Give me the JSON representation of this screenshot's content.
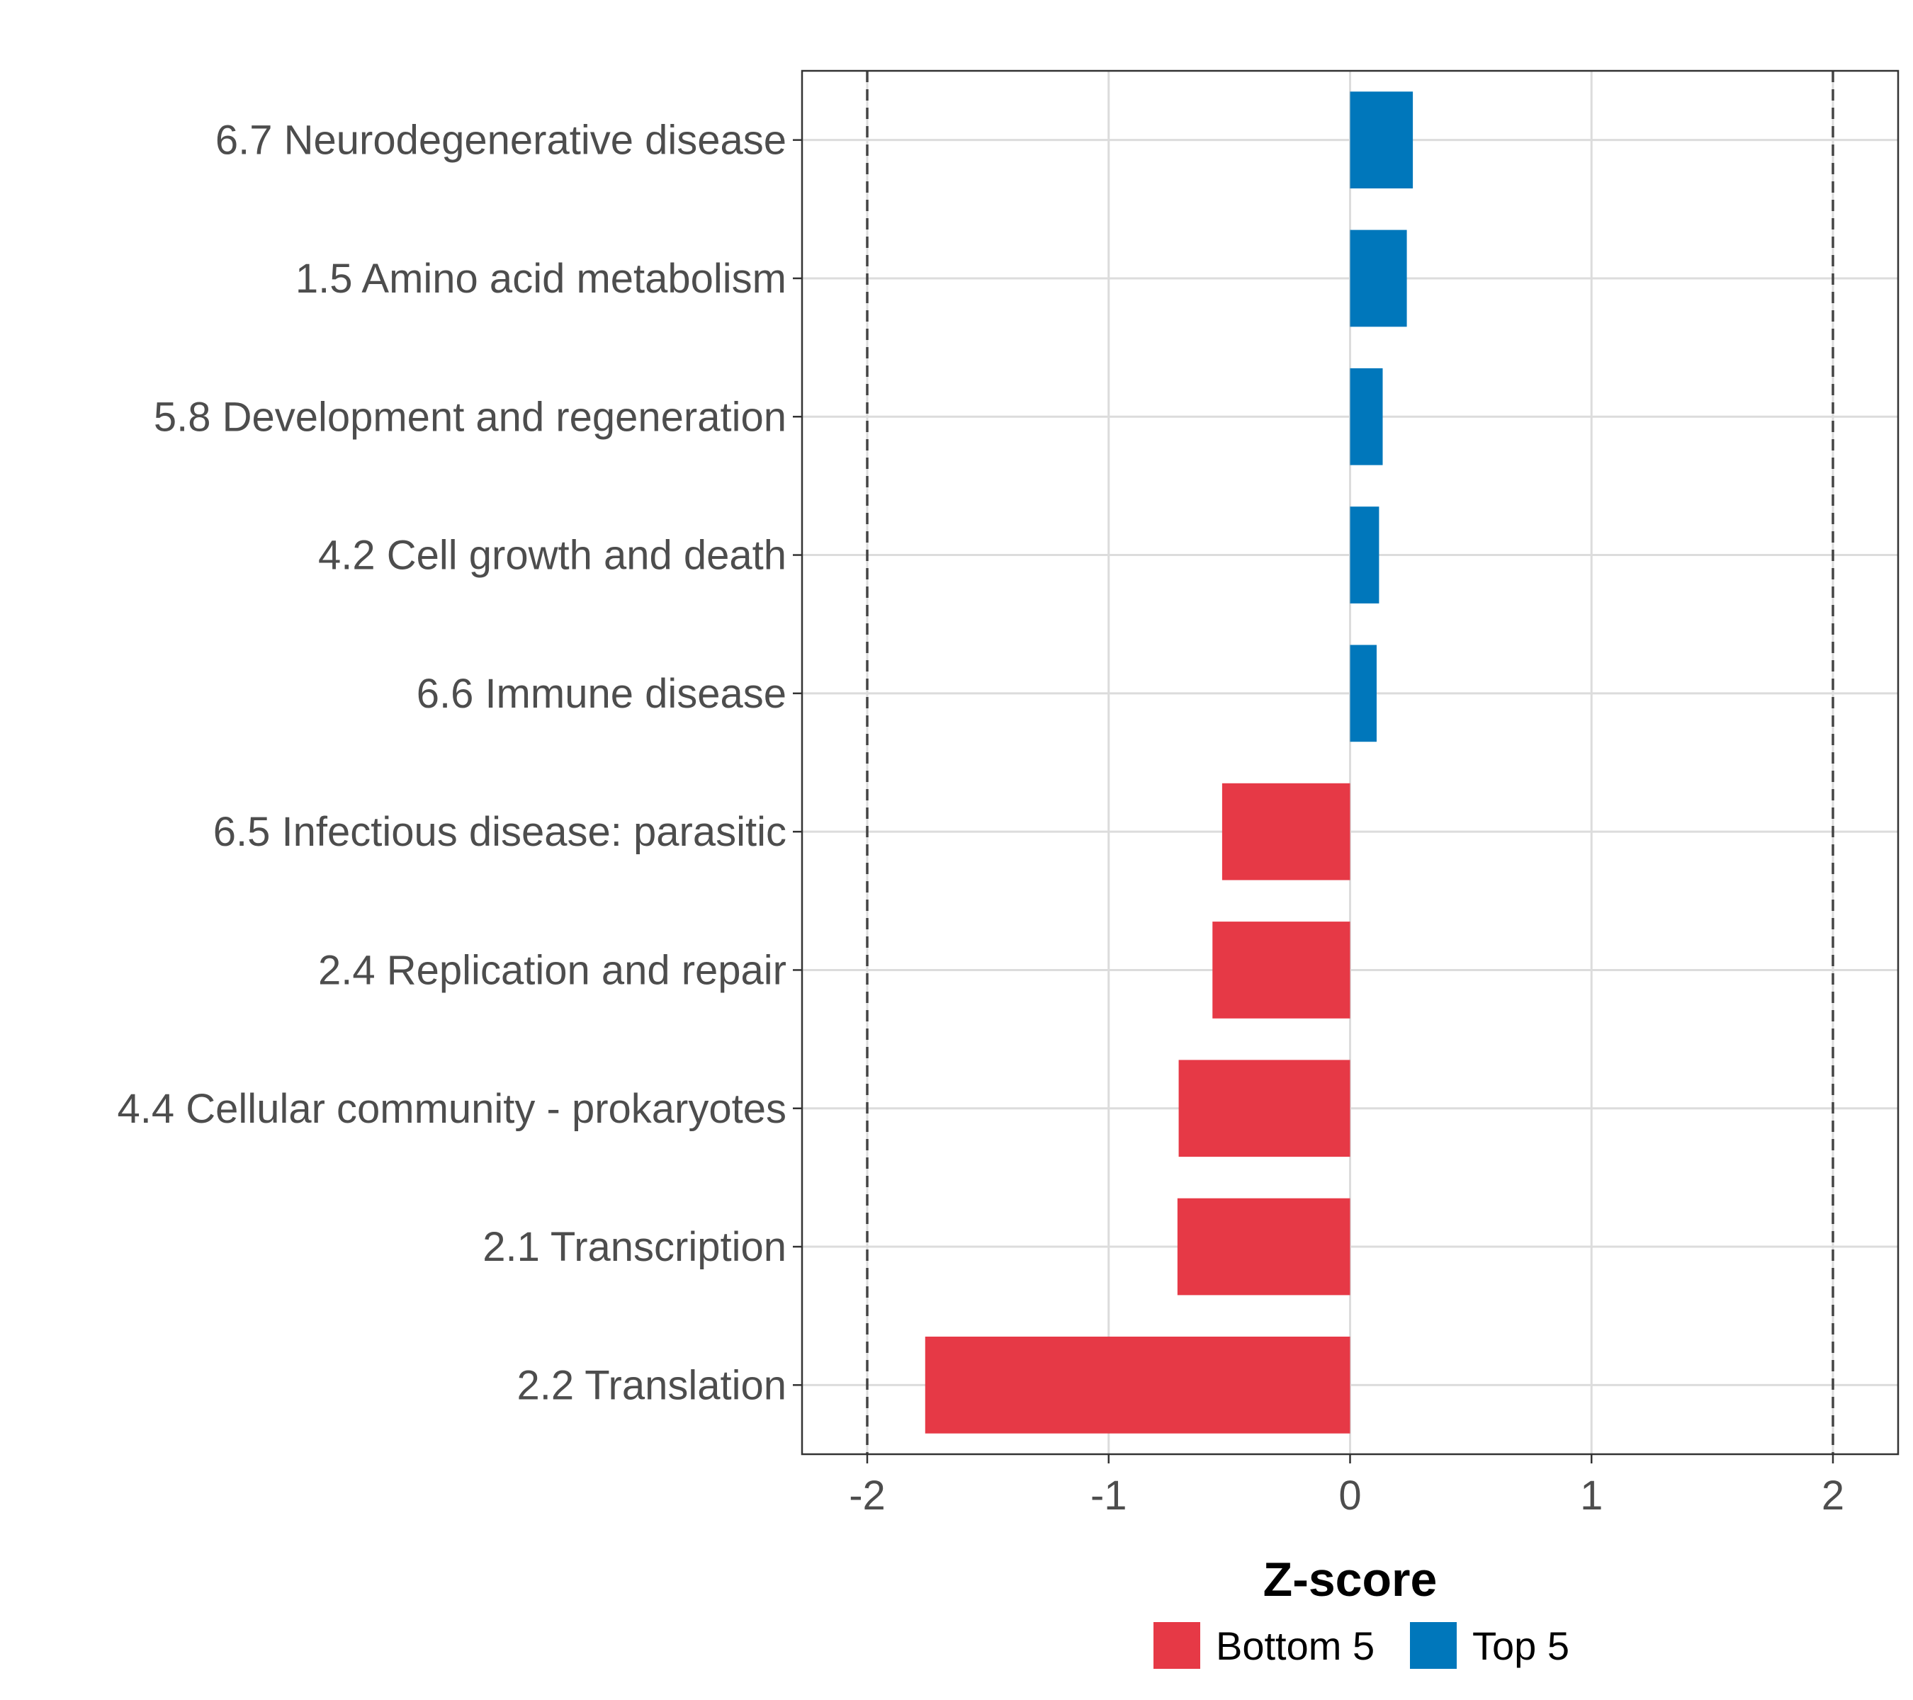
{
  "chart_data": {
    "type": "bar",
    "orientation": "horizontal",
    "title": "",
    "xlabel": "Z-score",
    "ylabel": "",
    "xlim": [
      -2.27,
      2.27
    ],
    "xticks": [
      -2,
      -1,
      0,
      1,
      2
    ],
    "xtick_labels": [
      "-2",
      "-1",
      "0",
      "1",
      "2"
    ],
    "reference_lines": [
      -2,
      2
    ],
    "grid": true,
    "legend_position": "bottom",
    "categories": [
      "6.7 Neurodegenerative disease",
      "1.5 Amino acid metabolism",
      "5.8 Development and regeneration",
      "4.2 Cell growth and death",
      "6.6 Immune disease",
      "6.5 Infectious disease: parasitic",
      "2.4 Replication and repair",
      "4.4 Cellular community - prokaryotes",
      "2.1 Transcription",
      "2.2 Translation"
    ],
    "values": [
      0.26,
      0.235,
      0.135,
      0.12,
      0.11,
      -0.53,
      -0.57,
      -0.71,
      -0.715,
      -1.76
    ],
    "groups": [
      "Top 5",
      "Top 5",
      "Top 5",
      "Top 5",
      "Top 5",
      "Bottom 5",
      "Bottom 5",
      "Bottom 5",
      "Bottom 5",
      "Bottom 5"
    ],
    "legend": [
      {
        "name": "Bottom 5",
        "color": "#e63946"
      },
      {
        "name": "Top 5",
        "color": "#0077bb"
      }
    ]
  }
}
